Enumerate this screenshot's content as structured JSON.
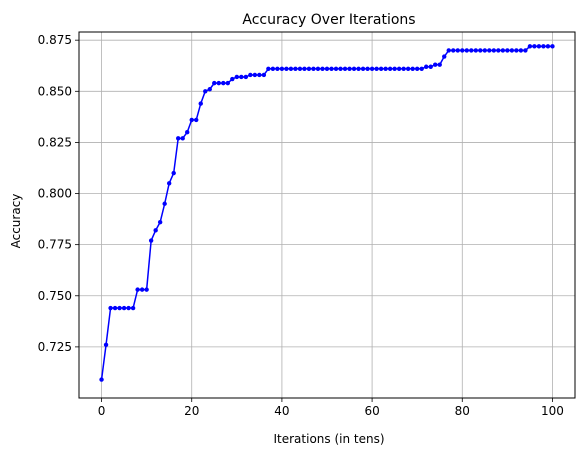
{
  "chart_data": {
    "type": "line",
    "title": "Accuracy Over Iterations",
    "xlabel": "Iterations (in tens)",
    "ylabel": "Accuracy",
    "xlim": [
      -5,
      105
    ],
    "ylim": [
      0.7,
      0.879
    ],
    "xticks": [
      0,
      20,
      40,
      60,
      80,
      100
    ],
    "xtick_labels": [
      "0",
      "20",
      "40",
      "60",
      "80",
      "100"
    ],
    "yticks": [
      0.725,
      0.75,
      0.775,
      0.8,
      0.825,
      0.85,
      0.875
    ],
    "ytick_labels": [
      "0.725",
      "0.750",
      "0.775",
      "0.800",
      "0.825",
      "0.850",
      "0.875"
    ],
    "grid": true,
    "line_color": "#0000ff",
    "grid_color": "#b0b0b0",
    "marker": "circle",
    "series": [
      {
        "x": [
          0,
          1,
          2,
          3,
          4,
          5,
          6,
          7,
          8,
          9,
          10,
          11,
          12,
          13,
          14,
          15,
          16,
          17,
          18,
          19,
          20,
          21,
          22,
          23,
          24,
          25,
          26,
          27,
          28,
          29,
          30,
          31,
          32,
          33,
          34,
          35,
          36,
          37,
          38,
          39,
          40,
          41,
          42,
          43,
          44,
          45,
          46,
          47,
          48,
          49,
          50,
          51,
          52,
          53,
          54,
          55,
          56,
          57,
          58,
          59,
          60,
          61,
          62,
          63,
          64,
          65,
          66,
          67,
          68,
          69,
          70,
          71,
          72,
          73,
          74,
          75,
          76,
          77,
          78,
          79,
          80,
          81,
          82,
          83,
          84,
          85,
          86,
          87,
          88,
          89,
          90,
          91,
          92,
          93,
          94,
          95,
          96,
          97,
          98,
          99,
          100
        ],
        "values": [
          0.709,
          0.726,
          0.744,
          0.744,
          0.744,
          0.744,
          0.744,
          0.744,
          0.753,
          0.753,
          0.753,
          0.777,
          0.782,
          0.786,
          0.795,
          0.805,
          0.81,
          0.827,
          0.827,
          0.83,
          0.836,
          0.836,
          0.844,
          0.85,
          0.851,
          0.854,
          0.854,
          0.854,
          0.854,
          0.856,
          0.857,
          0.857,
          0.857,
          0.858,
          0.858,
          0.858,
          0.858,
          0.861,
          0.861,
          0.861,
          0.861,
          0.861,
          0.861,
          0.861,
          0.861,
          0.861,
          0.861,
          0.861,
          0.861,
          0.861,
          0.861,
          0.861,
          0.861,
          0.861,
          0.861,
          0.861,
          0.861,
          0.861,
          0.861,
          0.861,
          0.861,
          0.861,
          0.861,
          0.861,
          0.861,
          0.861,
          0.861,
          0.861,
          0.861,
          0.861,
          0.861,
          0.861,
          0.862,
          0.862,
          0.863,
          0.863,
          0.867,
          0.87,
          0.87,
          0.87,
          0.87,
          0.87,
          0.87,
          0.87,
          0.87,
          0.87,
          0.87,
          0.87,
          0.87,
          0.87,
          0.87,
          0.87,
          0.87,
          0.87,
          0.87,
          0.872,
          0.872,
          0.872,
          0.872,
          0.872,
          0.872
        ]
      }
    ]
  }
}
